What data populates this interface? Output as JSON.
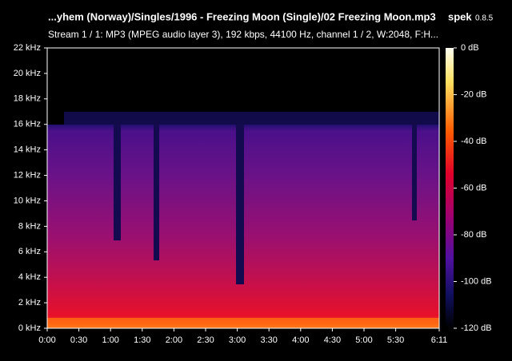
{
  "header": {
    "file": "...yhem (Norway)/Singles/1996 - Freezing Moon (Single)/02 Freezing Moon.mp3",
    "app": "spek",
    "version": "0.8.5",
    "stream": "Stream 1 / 1: MP3 (MPEG audio layer 3), 192 kbps, 44100 Hz, channel 1 / 2, W:2048, F:H..."
  },
  "frequency_axis": {
    "labels": [
      "0 kHz",
      "2 kHz",
      "4 kHz",
      "6 kHz",
      "8 kHz",
      "10 kHz",
      "12 kHz",
      "14 kHz",
      "16 kHz",
      "18 kHz",
      "20 kHz",
      "22 kHz"
    ]
  },
  "time_axis": {
    "labels": [
      "0:00",
      "0:30",
      "1:00",
      "1:30",
      "2:00",
      "2:30",
      "3:00",
      "3:30",
      "4:00",
      "4:30",
      "5:00",
      "5:30",
      "6:11"
    ]
  },
  "color_scale": {
    "labels": [
      "0 dB",
      "-20 dB",
      "-40 dB",
      "-60 dB",
      "-80 dB",
      "-100 dB",
      "-120 dB"
    ]
  }
}
